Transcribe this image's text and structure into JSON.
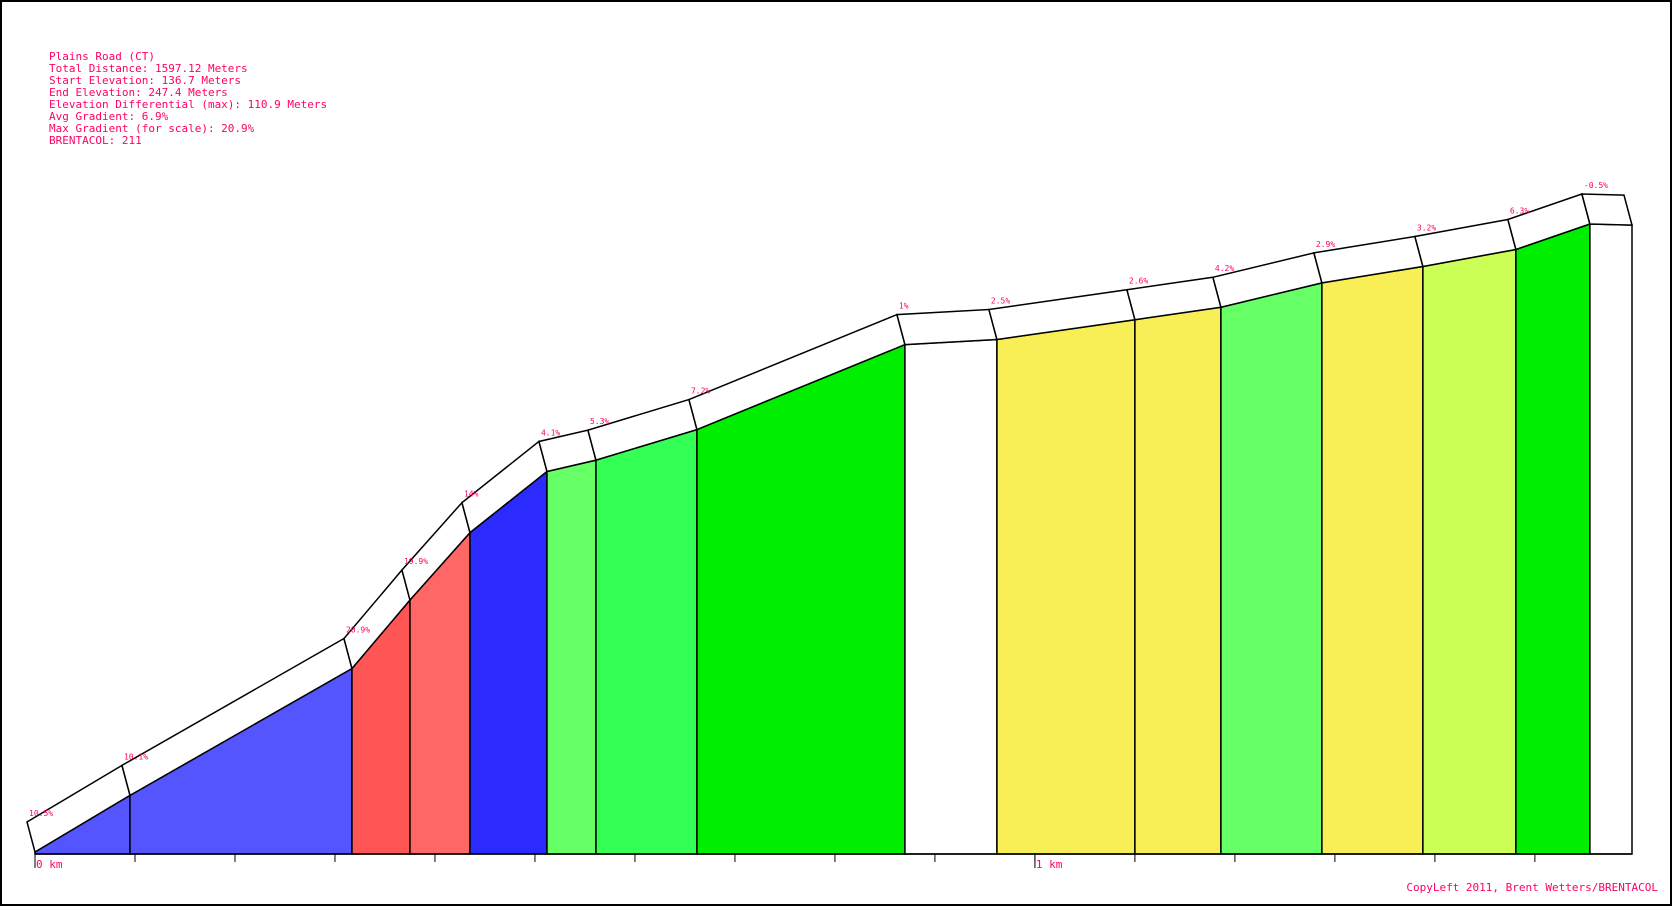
{
  "chart_data": {
    "type": "area",
    "title": "Plains Road (CT)",
    "info_lines": [
      "Plains Road (CT)",
      "Total Distance: 1597.12 Meters",
      "Start Elevation: 136.7 Meters",
      "End Elevation: 247.4 Meters",
      "Elevation Differential (max): 110.9 Meters",
      "Avg Gradient: 6.9%",
      "Max Gradient (for scale): 20.9%",
      "BRENTACOL: 211"
    ],
    "x_unit": "m",
    "xlim": [
      0,
      1597.12
    ],
    "ylim": [
      136.7,
      247.6
    ],
    "x_ticks": [
      {
        "x": 0,
        "label": "0 km"
      },
      {
        "x": 1000,
        "label": "1 km"
      }
    ],
    "minor_tick_step": 100,
    "segments": [
      {
        "start": 0,
        "end": 95,
        "gradient_label": "10.5%",
        "color": "#5555ff",
        "elev_start": 136.7,
        "elev_end": 146.7
      },
      {
        "start": 95,
        "end": 317,
        "gradient_label": "10.1%",
        "color": "#5555ff",
        "elev_start": 146.7,
        "elev_end": 169.1
      },
      {
        "start": 317,
        "end": 375,
        "gradient_label": "20.9%",
        "color": "#ff5555",
        "elev_start": 169.1,
        "elev_end": 181.2
      },
      {
        "start": 375,
        "end": 435,
        "gradient_label": "19.9%",
        "color": "#ff6666",
        "elev_start": 181.2,
        "elev_end": 193.1
      },
      {
        "start": 435,
        "end": 512,
        "gradient_label": "14%",
        "color": "#2b2bff",
        "elev_start": 193.1,
        "elev_end": 203.9
      },
      {
        "start": 512,
        "end": 561,
        "gradient_label": "4.1%",
        "color": "#66ff66",
        "elev_start": 203.9,
        "elev_end": 205.9
      },
      {
        "start": 561,
        "end": 662,
        "gradient_label": "5.3%",
        "color": "#33ff55",
        "elev_start": 205.9,
        "elev_end": 211.3
      },
      {
        "start": 662,
        "end": 870,
        "gradient_label": "7.2%",
        "color": "#00ee00",
        "elev_start": 211.3,
        "elev_end": 226.3
      },
      {
        "start": 870,
        "end": 962,
        "gradient_label": "1%",
        "color": "#ffffff",
        "elev_start": 226.3,
        "elev_end": 227.2
      },
      {
        "start": 962,
        "end": 1100,
        "gradient_label": "2.5%",
        "color": "#f8ee55",
        "elev_start": 227.2,
        "elev_end": 230.7
      },
      {
        "start": 1100,
        "end": 1186,
        "gradient_label": "2.6%",
        "color": "#f8ee55",
        "elev_start": 230.7,
        "elev_end": 232.9
      },
      {
        "start": 1186,
        "end": 1287,
        "gradient_label": "4.2%",
        "color": "#66ff66",
        "elev_start": 232.9,
        "elev_end": 237.2
      },
      {
        "start": 1287,
        "end": 1388,
        "gradient_label": "2.9%",
        "color": "#f8ee55",
        "elev_start": 237.2,
        "elev_end": 240.1
      },
      {
        "start": 1388,
        "end": 1481,
        "gradient_label": "3.2%",
        "color": "#ccff55",
        "elev_start": 240.1,
        "elev_end": 243.1
      },
      {
        "start": 1481,
        "end": 1555,
        "gradient_label": "6.3%",
        "color": "#00ee00",
        "elev_start": 243.1,
        "elev_end": 247.6
      },
      {
        "start": 1555,
        "end": 1597.12,
        "gradient_label": "-0.5%",
        "color": "#ffffff",
        "elev_start": 247.6,
        "elev_end": 247.4
      }
    ],
    "grid": false,
    "legend": "none"
  },
  "footer": {
    "copyright": "CopyLeft 2011, Brent Wetters/BRENTACOL"
  }
}
